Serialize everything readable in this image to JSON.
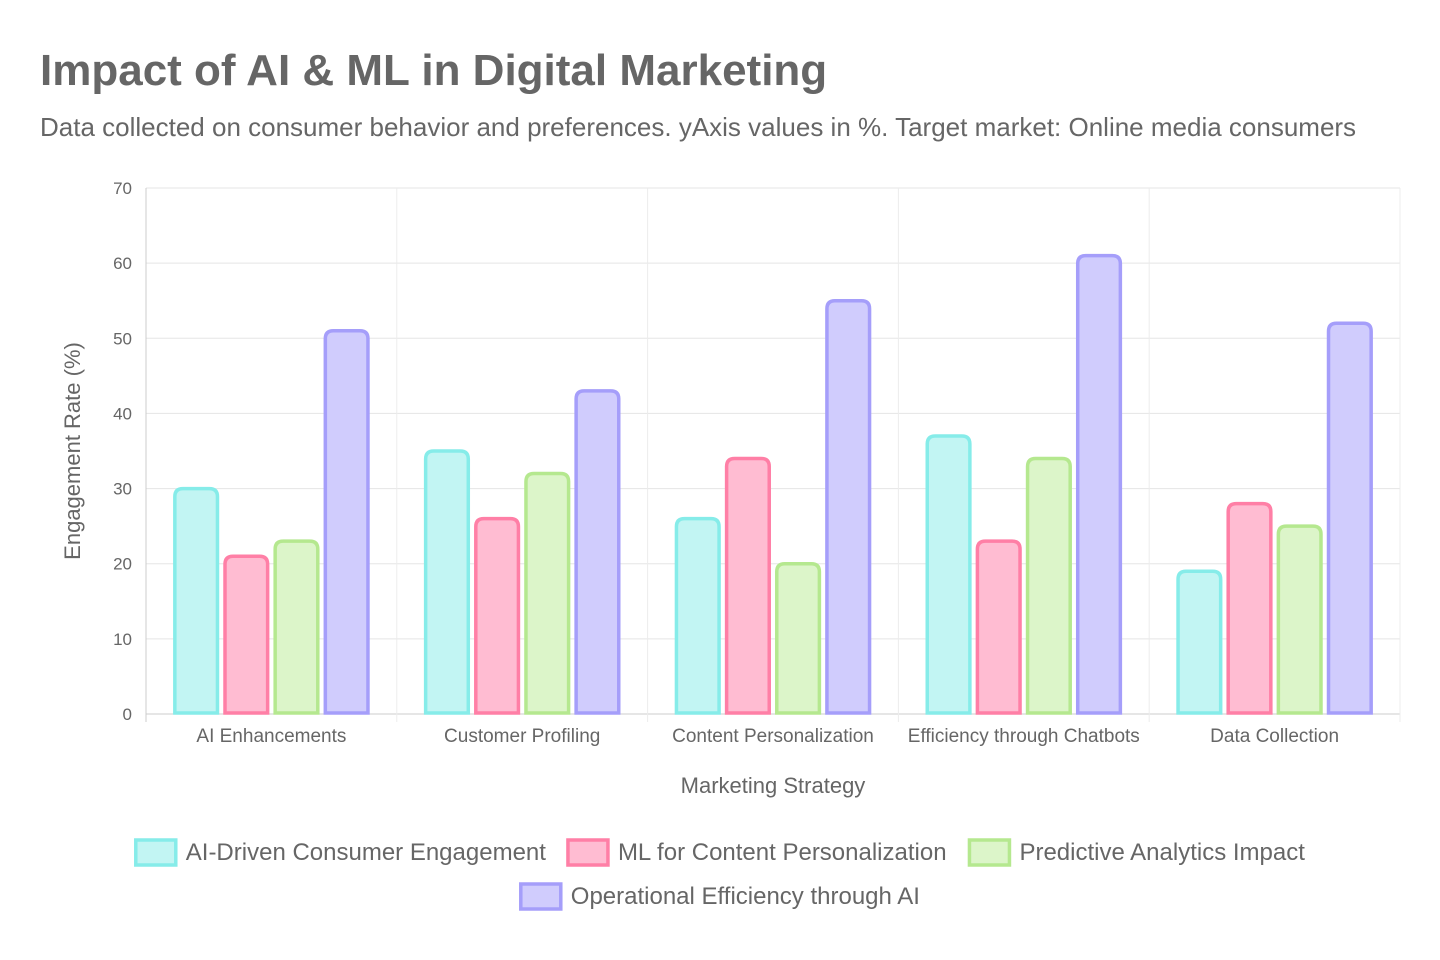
{
  "chart_data": {
    "type": "bar",
    "title": "Impact of AI & ML in Digital Marketing",
    "subtitle": "Data collected on consumer behavior and preferences. yAxis values in %. Target market: Online media consumers",
    "xlabel": "Marketing Strategy",
    "ylabel": "Engagement Rate (%)",
    "ylim": [
      0,
      70
    ],
    "yticks": [
      0,
      10,
      20,
      30,
      40,
      50,
      60,
      70
    ],
    "grid": true,
    "legend_position": "bottom",
    "categories": [
      "AI Enhancements",
      "Customer Profiling",
      "Content Personalization",
      "Efficiency through Chatbots",
      "Data Collection"
    ],
    "series": [
      {
        "name": "AI-Driven Consumer Engagement",
        "values": [
          30,
          35,
          26,
          37,
          19
        ],
        "border": "#86ece9",
        "fill": "#c2f5f3"
      },
      {
        "name": "ML for Content Personalization",
        "values": [
          21,
          26,
          34,
          23,
          28
        ],
        "border": "#ff7fa6",
        "fill": "#ffbcd2"
      },
      {
        "name": "Predictive Analytics Impact",
        "values": [
          23,
          32,
          20,
          34,
          25
        ],
        "border": "#b5e88f",
        "fill": "#dcf5c9"
      },
      {
        "name": "Operational Efficiency through AI",
        "values": [
          51,
          43,
          55,
          61,
          52
        ],
        "border": "#a59efa",
        "fill": "#d0ccfd"
      }
    ]
  }
}
